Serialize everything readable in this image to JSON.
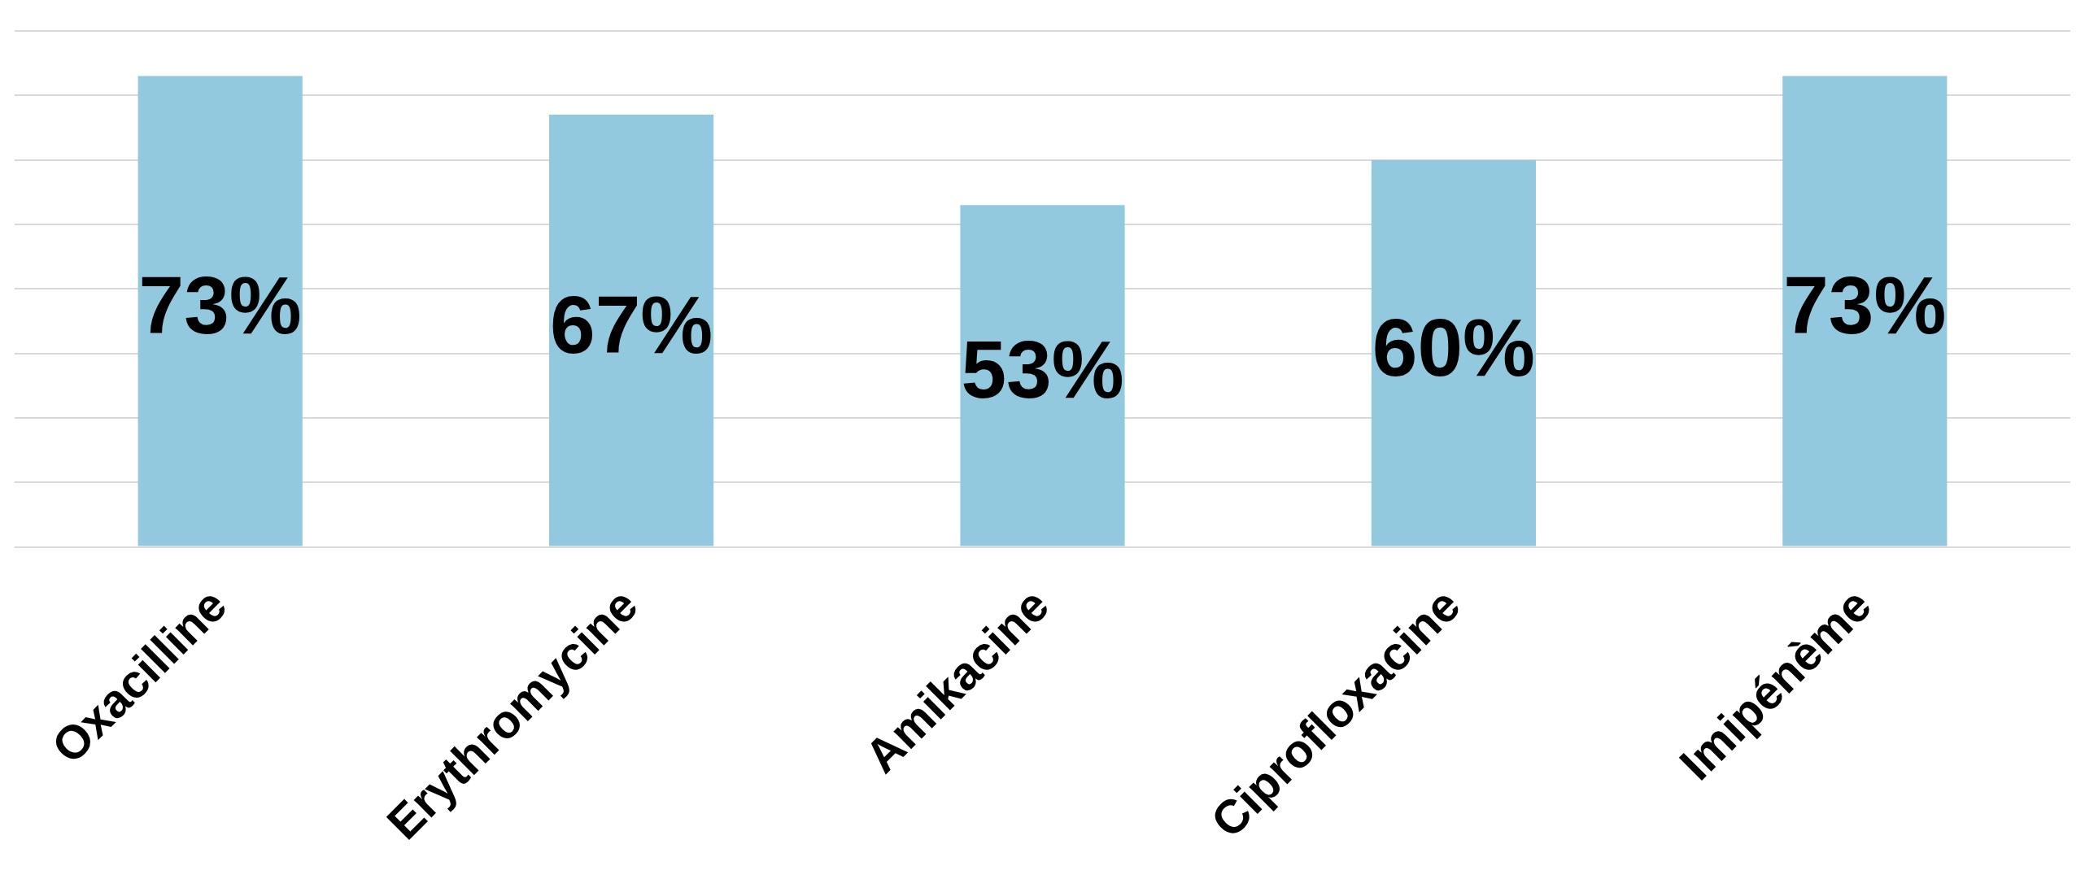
{
  "chart_data": {
    "type": "bar",
    "categories": [
      "Oxacilline",
      "Erythromycine",
      "Amikacine",
      "Ciprofloxacine",
      "Imipénème"
    ],
    "values": [
      73,
      67,
      53,
      60,
      73
    ],
    "value_labels": [
      "73%",
      "67%",
      "53%",
      "60%",
      "73%"
    ],
    "color": "#92c9de",
    "ylim": [
      0,
      80
    ],
    "yticks": [
      {
        "value": 0,
        "label": null
      },
      {
        "value": 10,
        "label": null
      },
      {
        "value": 20,
        "label": null
      },
      {
        "value": 30,
        "label": null
      },
      {
        "value": 40,
        "label": null
      },
      {
        "value": 50,
        "label": null
      },
      {
        "value": 60,
        "label": null
      },
      {
        "value": 70,
        "label": null
      },
      {
        "value": 80,
        "label": null
      }
    ],
    "grid": "y",
    "tick_labels": "x",
    "legend": false
  }
}
